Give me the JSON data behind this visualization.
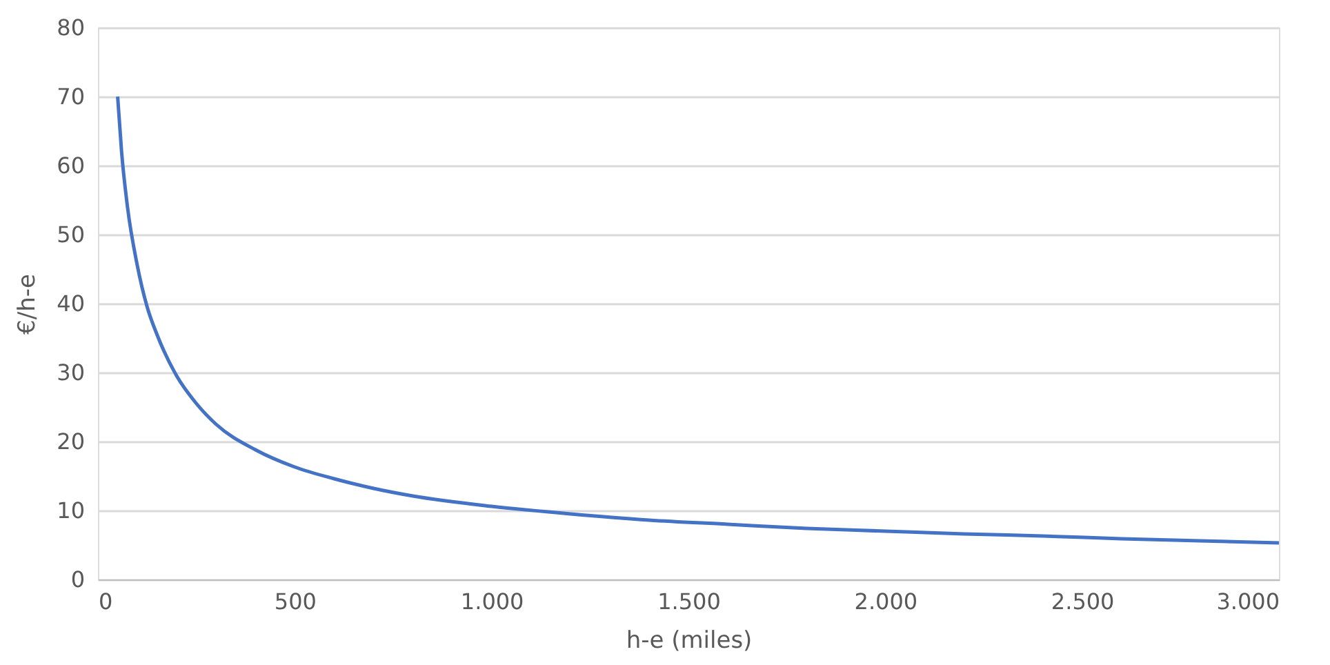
{
  "chart_data": {
    "type": "line",
    "xlabel": "h-e (miles)",
    "ylabel": "€/h-e",
    "x": [
      50,
      60,
      75,
      100,
      125,
      150,
      200,
      250,
      300,
      400,
      500,
      600,
      700,
      800,
      1000,
      1200,
      1400,
      1600,
      1800,
      2000,
      2200,
      2400,
      2600,
      2800,
      3000
    ],
    "series": [
      {
        "color": "#4472c4",
        "values": [
          70,
          62,
          54,
          45.5,
          39.5,
          35.5,
          29.5,
          25.5,
          22.5,
          18.8,
          16.3,
          14.6,
          13.2,
          12.1,
          10.6,
          9.5,
          8.6,
          8,
          7.4,
          7,
          6.6,
          6.3,
          5.9,
          5.6,
          5.3
        ]
      }
    ],
    "xlim": [
      0,
      3000
    ],
    "ylim": [
      0,
      80
    ],
    "xticks": [
      0,
      500,
      {
        "value": 1000,
        "label": "1.000"
      },
      {
        "value": 1500,
        "label": "1.500"
      },
      {
        "value": 2000,
        "label": "2.000"
      },
      {
        "value": 2500,
        "label": "2.500"
      },
      {
        "value": 3000,
        "label": "3.000"
      }
    ],
    "yticks": [
      0,
      10,
      20,
      30,
      40,
      50,
      60,
      70,
      80
    ],
    "grid": "y",
    "legend": false,
    "marker": "none",
    "line_style": "solid"
  }
}
